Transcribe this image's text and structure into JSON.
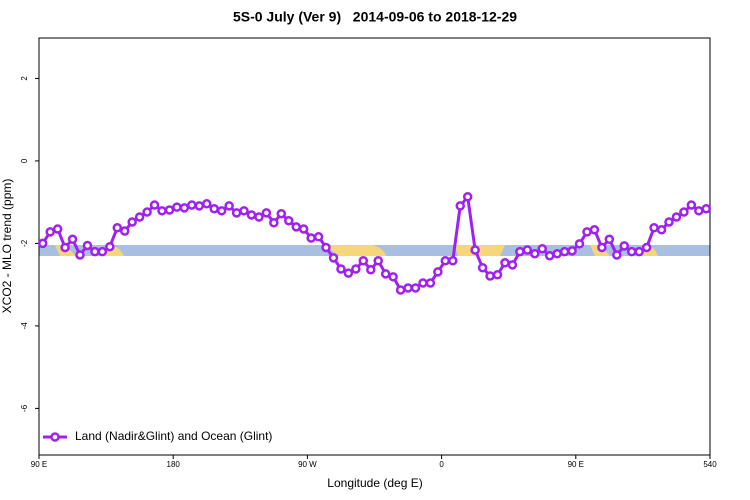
{
  "chart_data": {
    "type": "line",
    "title": "5S-0 July (Ver 9)   2014-09-06 to 2018-12-29",
    "xlabel": "Longitude (deg E)",
    "ylabel": "XCO2 - MLO trend (ppm)",
    "xlim": [
      90,
      540
    ],
    "ylim": [
      -7.13,
      2.98
    ],
    "xticks": [
      {
        "value": 90,
        "label": "90 E"
      },
      180,
      {
        "value": 270,
        "label": "90 W"
      },
      {
        "value": 360,
        "label": "0"
      },
      {
        "value": 450,
        "label": "90 E"
      },
      540
    ],
    "yticks": [
      -6,
      -4,
      -2,
      0,
      2
    ],
    "legend": "bottom-left",
    "x": [
      92.5,
      97.5,
      102.5,
      107.5,
      112.5,
      117.5,
      122.5,
      127.5,
      132.5,
      137.5,
      142.5,
      147.5,
      152.5,
      157.5,
      162.5,
      167.5,
      172.5,
      177.5,
      182.5,
      187.5,
      192.5,
      197.5,
      202.5,
      207.5,
      212.5,
      217.5,
      222.5,
      227.5,
      232.5,
      237.5,
      242.5,
      247.5,
      252.5,
      257.5,
      262.5,
      267.5,
      272.5,
      277.5,
      282.5,
      287.5,
      292.5,
      297.5,
      302.5,
      307.5,
      312.5,
      317.5,
      322.5,
      327.5,
      332.5,
      337.5,
      342.5,
      347.5,
      352.5,
      357.5,
      362.5,
      367.5,
      372.5,
      377.5,
      382.5,
      387.5,
      392.5,
      397.5,
      402.5,
      407.5,
      412.5,
      417.5,
      422.5,
      427.5,
      432.5,
      437.5,
      442.5,
      447.5,
      452.5,
      457.5,
      462.5,
      467.5,
      472.5,
      477.5,
      482.5,
      487.5,
      492.5,
      497.5,
      502.5,
      507.5,
      512.5,
      517.5,
      522.5,
      527.5,
      532.5,
      537.5
    ],
    "series": [
      {
        "name": "Land (Nadir&Glint) and Ocean (Glint)",
        "color": "#a020f0",
        "values": [
          -2.0,
          -1.72,
          -1.65,
          -2.1,
          -1.9,
          -2.28,
          -2.05,
          -2.2,
          -2.2,
          -2.08,
          -1.62,
          -1.7,
          -1.48,
          -1.36,
          -1.24,
          -1.07,
          -1.21,
          -1.19,
          -1.12,
          -1.14,
          -1.07,
          -1.09,
          -1.04,
          -1.16,
          -1.21,
          -1.09,
          -1.26,
          -1.21,
          -1.31,
          -1.36,
          -1.26,
          -1.5,
          -1.28,
          -1.45,
          -1.6,
          -1.65,
          -1.87,
          -1.84,
          -2.1,
          -2.35,
          -2.62,
          -2.72,
          -2.62,
          -2.42,
          -2.64,
          -2.42,
          -2.74,
          -2.81,
          -3.13,
          -3.08,
          -3.08,
          -2.96,
          -2.96,
          -2.69,
          -2.42,
          -2.42,
          -1.09,
          -0.87,
          -2.16,
          -2.59,
          -2.79,
          -2.76,
          -2.47,
          -2.52,
          -2.2,
          -2.16,
          -2.25,
          -2.13,
          -2.3,
          -2.25,
          -2.2,
          -2.18,
          -2.01,
          -1.72,
          -1.67,
          -2.1,
          -1.9,
          -2.28,
          -2.06,
          -2.2,
          -2.2,
          -2.1,
          -1.62,
          -1.67,
          -1.48,
          -1.36,
          -1.24,
          -1.07,
          -1.21,
          -1.16
        ]
      }
    ]
  }
}
